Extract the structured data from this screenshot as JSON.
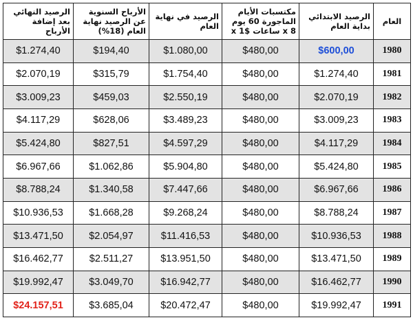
{
  "table": {
    "headers": {
      "year": "العام",
      "start_balance": "الرصيد الابتدائي بداية العام",
      "earnings": "مكتسبات الأيام الماجورة 60 يوم x 8 ساعات x 1$",
      "end_balance": "الرصيد في نهاية العام",
      "profit": "الأرباح السنوية عن الرصيد نهاية العام (18%)",
      "final_balance": "الرصيد النهائي بعد إضافة الأرباح"
    },
    "rows": [
      {
        "year": "1980",
        "start": "$600,00",
        "earn": "$480,00",
        "end": "$1.080,00",
        "profit": "$194,40",
        "final": "$1.274,40"
      },
      {
        "year": "1981",
        "start": "$1.274,40",
        "earn": "$480,00",
        "end": "$1.754,40",
        "profit": "$315,79",
        "final": "$2.070,19"
      },
      {
        "year": "1982",
        "start": "$2.070,19",
        "earn": "$480,00",
        "end": "$2.550,19",
        "profit": "$459,03",
        "final": "$3.009,23"
      },
      {
        "year": "1983",
        "start": "$3.009,23",
        "earn": "$480,00",
        "end": "$3.489,23",
        "profit": "$628,06",
        "final": "$4.117,29"
      },
      {
        "year": "1984",
        "start": "$4.117,29",
        "earn": "$480,00",
        "end": "$4.597,29",
        "profit": "$827,51",
        "final": "$5.424,80"
      },
      {
        "year": "1985",
        "start": "$5.424,80",
        "earn": "$480,00",
        "end": "$5.904,80",
        "profit": "$1.062,86",
        "final": "$6.967,66"
      },
      {
        "year": "1986",
        "start": "$6.967,66",
        "earn": "$480,00",
        "end": "$7.447,66",
        "profit": "$1.340,58",
        "final": "$8.788,24"
      },
      {
        "year": "1987",
        "start": "$8.788,24",
        "earn": "$480,00",
        "end": "$9.268,24",
        "profit": "$1.668,28",
        "final": "$10.936,53"
      },
      {
        "year": "1988",
        "start": "$10.936,53",
        "earn": "$480,00",
        "end": "$11.416,53",
        "profit": "$2.054,97",
        "final": "$13.471,50"
      },
      {
        "year": "1989",
        "start": "$13.471,50",
        "earn": "$480,00",
        "end": "$13.951,50",
        "profit": "$2.511,27",
        "final": "$16.462,77"
      },
      {
        "year": "1990",
        "start": "$16.462,77",
        "earn": "$480,00",
        "end": "$16.942,77",
        "profit": "$3.049,70",
        "final": "$19.992,47"
      },
      {
        "year": "1991",
        "start": "$19.992,47",
        "earn": "$480,00",
        "end": "$20.472,47",
        "profit": "$3.685,04",
        "final": "$24.157,51"
      }
    ]
  },
  "colors": {
    "highlight_start": "#1e4fd8",
    "highlight_final": "#e2231a",
    "stripe": "#e3e3e3"
  }
}
